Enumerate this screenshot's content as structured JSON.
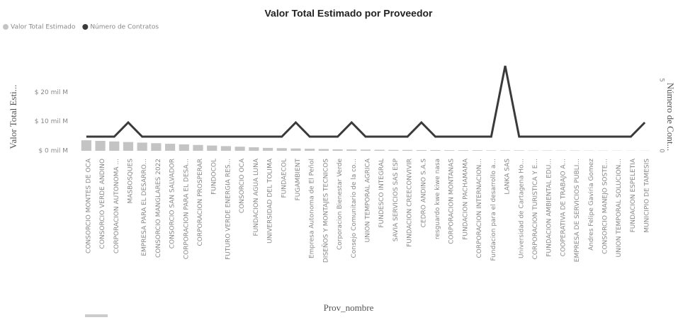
{
  "chart_data": {
    "type": "combo",
    "title": "Valor Total Estimado por Proveedor",
    "x_label": "Prov_nombre",
    "y_label": "Valor Total Esti...",
    "y2_label": "Número de Cont...",
    "legend": "top-left",
    "categories": [
      "CONSORCIO MONTES DE OCA",
      "CONSORCIO VERDE ANDINO",
      "CORPORACION AUTONOMA ...",
      "MASBOSQUES",
      "EMPRESA PARA EL DESARRO...",
      "CONSORCIO MANGLARES 2022",
      "CONSORCIO SAN SALVADOR",
      "CORPORACION PARA EL DESA...",
      "CORPORACION PROSPERAR",
      "FUNDOCOL",
      "FUTURO VERDE ENERGIA RES...",
      "CONSORCIO OCA",
      "FUNDACION AGUA LUNA",
      "UNIVERSIDAD DEL TOLIMA",
      "FUNDAECOL",
      "FUGAMBIENT",
      "Empresa Autonoma de El Peñol",
      "DISEÑOS Y MONTAJES TECNICOS",
      "Corporacion Bienestar Verde",
      "Consejo Comunitario de la co...",
      "UNION TEMPORAL AGRICA",
      "FUNDESCO INTEGRAL",
      "SAVIA SERVICIOS SAS ESP",
      "FUNDACION CREECONVIVIR",
      "CEDRO ANDINO S.A.S",
      "resguardo kwe kiwe nasa",
      "CORPORACION MONTANAS",
      "FUNDACION PACHAMAMA",
      "CORPORACION INTERNACION...",
      "Fundacion para el desarrollo a...",
      "LANKA SAS",
      "Universidad de Cartagena Ho...",
      "CORPORACION TURISTICA Y E...",
      "FUNDACION AMBIENTAL EDU...",
      "COOPERATIVA DE TRABAJO A...",
      "EMPRESA DE SERVICIOS PUBLI...",
      "Andres Felipe Gaviria Gomez",
      "CONSORCIO MANEJO SOSTE...",
      "UNION TEMPORAL SOLUCION...",
      "FUNDACION ESPELETIA",
      "MUNICIPIO DE TAMESIS"
    ],
    "series": [
      {
        "name": "Valor Total Estimado",
        "type": "bar",
        "color": "#c4c4c4",
        "values": [
          3.6,
          3.4,
          3.2,
          3.0,
          2.8,
          2.6,
          2.4,
          2.2,
          2.0,
          1.8,
          1.6,
          1.4,
          1.2,
          1.0,
          0.9,
          0.8,
          0.7,
          0.6,
          0.5,
          0.45,
          0.4,
          0.35,
          0.3,
          0.3,
          0.25,
          0.25,
          0.2,
          0.2,
          0.2,
          0.15,
          0.15,
          0.15,
          0.1,
          0.1,
          0.1,
          0.1,
          0.08,
          0.08,
          0.06,
          0.05,
          0.05
        ]
      },
      {
        "name": "Número de Contratos",
        "type": "line",
        "axis": "y2",
        "color": "#3a3a3a",
        "values": [
          1,
          1,
          1,
          2,
          1,
          1,
          1,
          1,
          1,
          1,
          1,
          1,
          1,
          1,
          1,
          2,
          1,
          1,
          1,
          2,
          1,
          1,
          1,
          1,
          2,
          1,
          1,
          1,
          1,
          1,
          6,
          1,
          1,
          1,
          1,
          1,
          1,
          1,
          1,
          1,
          2
        ]
      }
    ],
    "ylim": [
      0,
      31
    ],
    "yticks": [
      {
        "value": 0,
        "label": "$ 0 mil M"
      },
      {
        "value": 10,
        "label": "$ 10 mil M"
      },
      {
        "value": 20,
        "label": "$ 20 mil M"
      }
    ],
    "y2lim": [
      0,
      6.4
    ],
    "y2ticks": [
      0,
      5
    ],
    "grid": false
  }
}
